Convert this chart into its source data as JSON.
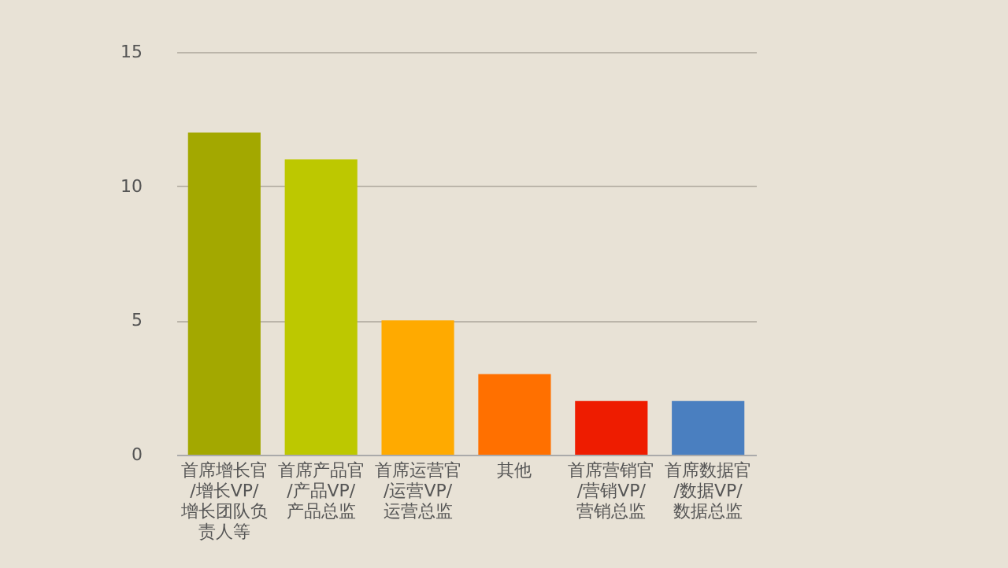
{
  "chart_data": {
    "type": "bar",
    "categories": [
      "首席增长官/增长VP/增长团队负责人等",
      "首席产品官/产品VP/产品总监",
      "首席运营官/运营VP/运营总监",
      "其他",
      "首席营销官/营销VP/营销总监",
      "首席数据官/数据VP/数据总监"
    ],
    "values": [
      12,
      11,
      5,
      3,
      2,
      2
    ],
    "colors": [
      "#a3a800",
      "#bdc800",
      "#ffaa00",
      "#ff7000",
      "#ee1c00",
      "#4a7fc0"
    ],
    "ylim": [
      0,
      15
    ],
    "yticks": [
      0,
      5,
      10,
      15
    ],
    "grid": "y"
  }
}
